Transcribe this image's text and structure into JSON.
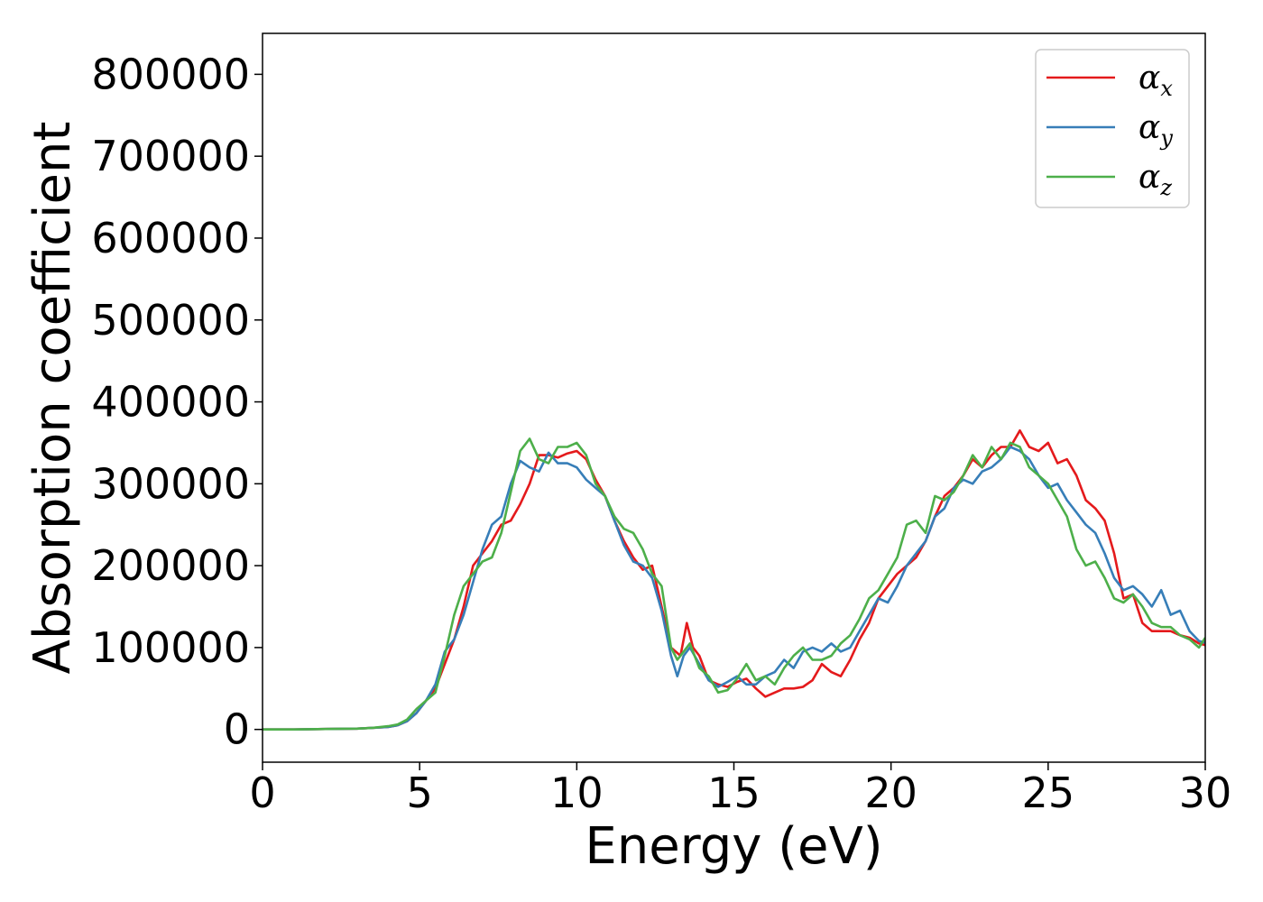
{
  "chart_data": {
    "type": "line",
    "xlabel": "Energy (eV)",
    "ylabel": "Absorption coefficient",
    "xlim": [
      0,
      30
    ],
    "ylim": [
      -40000,
      850000
    ],
    "xticks": [
      0,
      5,
      10,
      15,
      20,
      25,
      30
    ],
    "xtick_labels": [
      "0",
      "5",
      "10",
      "15",
      "20",
      "25",
      "30"
    ],
    "yticks": [
      0,
      100000,
      200000,
      300000,
      400000,
      500000,
      600000,
      700000,
      800000
    ],
    "ytick_labels": [
      "0",
      "100000",
      "200000",
      "300000",
      "400000",
      "500000",
      "600000",
      "700000",
      "800000"
    ],
    "grid": false,
    "legend_position": "top-right",
    "series": [
      {
        "name": "αx",
        "legend_base": "α",
        "legend_sub": "x",
        "color": "#e41a1c",
        "x": [
          0,
          1,
          2,
          3,
          3.5,
          4,
          4.3,
          4.6,
          4.9,
          5.2,
          5.5,
          5.8,
          6.1,
          6.4,
          6.7,
          7.0,
          7.3,
          7.6,
          7.9,
          8.2,
          8.5,
          8.8,
          9.1,
          9.4,
          9.7,
          10.0,
          10.3,
          10.6,
          10.9,
          11.2,
          11.5,
          11.8,
          12.1,
          12.4,
          12.7,
          13.0,
          13.3,
          13.5,
          13.7,
          13.9,
          14.2,
          14.5,
          14.8,
          15.1,
          15.4,
          15.7,
          16.0,
          16.3,
          16.6,
          16.9,
          17.2,
          17.5,
          17.8,
          18.1,
          18.4,
          18.7,
          19.0,
          19.3,
          19.6,
          19.9,
          20.2,
          20.5,
          20.8,
          21.1,
          21.4,
          21.7,
          22.0,
          22.3,
          22.6,
          22.9,
          23.2,
          23.5,
          23.8,
          24.1,
          24.4,
          24.7,
          25.0,
          25.3,
          25.6,
          25.9,
          26.2,
          26.5,
          26.8,
          27.1,
          27.4,
          27.7,
          28.0,
          28.3,
          28.6,
          28.9,
          29.2,
          29.5,
          29.8,
          30.0
        ],
        "y": [
          0,
          0,
          500,
          1000,
          2000,
          3000,
          5000,
          10000,
          20000,
          35000,
          50000,
          80000,
          110000,
          150000,
          200000,
          215000,
          230000,
          250000,
          255000,
          275000,
          300000,
          335000,
          335000,
          332000,
          337000,
          340000,
          330000,
          305000,
          285000,
          255000,
          230000,
          210000,
          195000,
          200000,
          150000,
          100000,
          90000,
          130000,
          100000,
          90000,
          60000,
          55000,
          52000,
          58000,
          62000,
          50000,
          40000,
          45000,
          50000,
          50000,
          52000,
          60000,
          80000,
          70000,
          65000,
          85000,
          110000,
          130000,
          160000,
          175000,
          190000,
          200000,
          210000,
          230000,
          260000,
          285000,
          295000,
          310000,
          330000,
          320000,
          335000,
          345000,
          345000,
          365000,
          345000,
          340000,
          350000,
          325000,
          330000,
          310000,
          280000,
          270000,
          255000,
          215000,
          160000,
          165000,
          130000,
          120000,
          120000,
          120000,
          115000,
          112000,
          105000,
          103000
        ]
      },
      {
        "name": "αy",
        "legend_base": "α",
        "legend_sub": "y",
        "color": "#377eb8",
        "x": [
          0,
          1,
          2,
          3,
          3.5,
          4,
          4.3,
          4.6,
          4.9,
          5.2,
          5.5,
          5.8,
          6.1,
          6.4,
          6.7,
          7.0,
          7.3,
          7.6,
          7.9,
          8.2,
          8.5,
          8.8,
          9.1,
          9.4,
          9.7,
          10.0,
          10.3,
          10.6,
          10.9,
          11.2,
          11.5,
          11.8,
          12.1,
          12.4,
          12.7,
          13.0,
          13.2,
          13.4,
          13.6,
          13.9,
          14.2,
          14.5,
          14.8,
          15.1,
          15.4,
          15.7,
          16.0,
          16.3,
          16.6,
          16.9,
          17.2,
          17.5,
          17.8,
          18.1,
          18.4,
          18.7,
          19.0,
          19.3,
          19.6,
          19.9,
          20.2,
          20.5,
          20.8,
          21.1,
          21.4,
          21.7,
          22.0,
          22.3,
          22.6,
          22.9,
          23.2,
          23.5,
          23.8,
          24.1,
          24.4,
          24.7,
          25.0,
          25.3,
          25.6,
          25.9,
          26.2,
          26.5,
          26.8,
          27.1,
          27.4,
          27.7,
          28.0,
          28.3,
          28.6,
          28.9,
          29.2,
          29.5,
          29.8,
          30.0
        ],
        "y": [
          0,
          0,
          500,
          1000,
          2000,
          3000,
          5000,
          10000,
          20000,
          35000,
          55000,
          95000,
          110000,
          140000,
          180000,
          220000,
          250000,
          260000,
          300000,
          328000,
          320000,
          315000,
          338000,
          325000,
          325000,
          320000,
          305000,
          295000,
          285000,
          255000,
          225000,
          205000,
          200000,
          185000,
          145000,
          90000,
          65000,
          90000,
          100000,
          80000,
          60000,
          52000,
          58000,
          65000,
          55000,
          55000,
          65000,
          70000,
          85000,
          75000,
          95000,
          100000,
          95000,
          105000,
          95000,
          100000,
          120000,
          140000,
          160000,
          155000,
          175000,
          200000,
          215000,
          230000,
          260000,
          270000,
          295000,
          305000,
          300000,
          315000,
          320000,
          330000,
          345000,
          340000,
          330000,
          310000,
          295000,
          300000,
          280000,
          265000,
          250000,
          240000,
          215000,
          185000,
          170000,
          175000,
          165000,
          150000,
          170000,
          140000,
          145000,
          120000,
          108000,
          106000
        ]
      },
      {
        "name": "αz",
        "legend_base": "α",
        "legend_sub": "z",
        "color": "#4daf4a",
        "x": [
          0,
          1,
          2,
          3,
          3.5,
          4,
          4.3,
          4.6,
          4.9,
          5.2,
          5.5,
          5.8,
          6.1,
          6.4,
          6.7,
          7.0,
          7.3,
          7.6,
          7.9,
          8.2,
          8.5,
          8.8,
          9.1,
          9.4,
          9.7,
          10.0,
          10.3,
          10.6,
          10.9,
          11.2,
          11.5,
          11.8,
          12.1,
          12.4,
          12.7,
          13.0,
          13.2,
          13.4,
          13.6,
          13.9,
          14.2,
          14.5,
          14.8,
          15.1,
          15.4,
          15.7,
          16.0,
          16.3,
          16.6,
          16.9,
          17.2,
          17.5,
          17.8,
          18.1,
          18.4,
          18.7,
          19.0,
          19.3,
          19.6,
          19.9,
          20.2,
          20.5,
          20.8,
          21.1,
          21.4,
          21.7,
          22.0,
          22.3,
          22.6,
          22.9,
          23.2,
          23.5,
          23.8,
          24.1,
          24.4,
          24.7,
          25.0,
          25.3,
          25.6,
          25.9,
          26.2,
          26.5,
          26.8,
          27.1,
          27.4,
          27.7,
          28.0,
          28.3,
          28.6,
          28.9,
          29.2,
          29.5,
          29.8,
          30.0
        ],
        "y": [
          0,
          0,
          500,
          1000,
          2000,
          4000,
          6000,
          12000,
          25000,
          35000,
          45000,
          90000,
          140000,
          175000,
          190000,
          205000,
          210000,
          240000,
          290000,
          340000,
          355000,
          330000,
          325000,
          345000,
          345000,
          350000,
          335000,
          300000,
          285000,
          260000,
          245000,
          240000,
          220000,
          190000,
          175000,
          100000,
          85000,
          95000,
          105000,
          75000,
          65000,
          45000,
          48000,
          62000,
          80000,
          60000,
          65000,
          55000,
          75000,
          90000,
          100000,
          85000,
          85000,
          90000,
          105000,
          115000,
          135000,
          160000,
          170000,
          190000,
          210000,
          250000,
          255000,
          240000,
          285000,
          280000,
          290000,
          310000,
          335000,
          320000,
          345000,
          330000,
          350000,
          345000,
          320000,
          310000,
          300000,
          280000,
          260000,
          220000,
          200000,
          205000,
          185000,
          160000,
          155000,
          165000,
          150000,
          130000,
          125000,
          125000,
          115000,
          110000,
          100000,
          112000
        ]
      }
    ]
  }
}
